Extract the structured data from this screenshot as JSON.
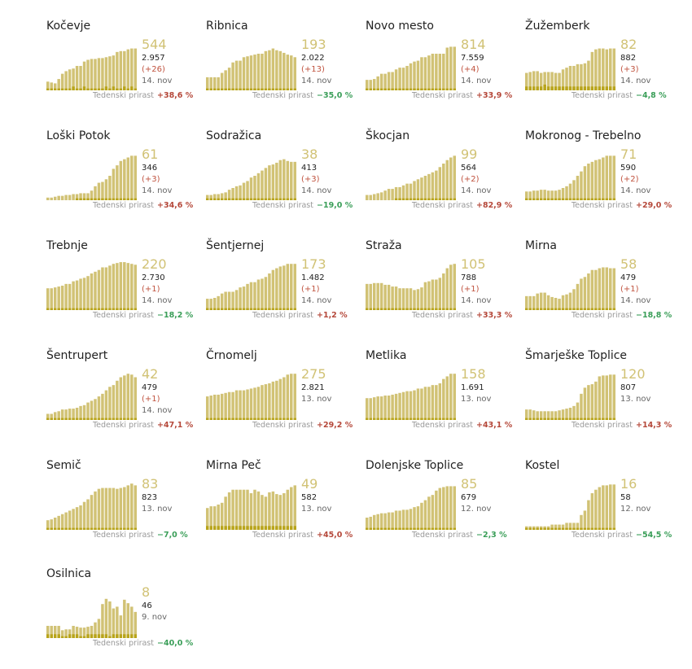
{
  "growth_label": "Tedenski prirast",
  "colors": {
    "active": "#d1c275",
    "new": "#b8a41a",
    "growth_up": "#b5483a",
    "growth_down": "#3a9e58"
  },
  "chart_data": [
    {
      "type": "bar",
      "name": "Kočevje",
      "active": "544",
      "total": "2.957",
      "delta": "(+26)",
      "date": "14. nov",
      "growth": "+38,6 %",
      "values": [
        10,
        9,
        8,
        13,
        19,
        22,
        24,
        25,
        28,
        28,
        33,
        35,
        36,
        36,
        37,
        37,
        38,
        39,
        40,
        44,
        45,
        45,
        47,
        48,
        48
      ],
      "new": [
        1,
        1,
        1,
        1,
        1,
        1,
        1,
        2,
        1,
        1,
        2,
        1,
        1,
        1,
        1,
        1,
        2,
        1,
        2,
        1,
        1,
        2,
        1,
        2,
        1
      ]
    },
    {
      "type": "bar",
      "name": "Ribnica",
      "active": "193",
      "total": "2.022",
      "delta": "(+13)",
      "date": "14. nov",
      "growth": "−35,0 %",
      "values": [
        15,
        15,
        15,
        15,
        20,
        23,
        26,
        32,
        34,
        34,
        38,
        39,
        40,
        41,
        42,
        42,
        45,
        46,
        48,
        46,
        45,
        43,
        41,
        40,
        38
      ],
      "new": [
        1,
        1,
        1,
        1,
        1,
        1,
        1,
        1,
        1,
        1,
        1,
        1,
        1,
        1,
        1,
        1,
        1,
        1,
        1,
        1,
        1,
        1,
        1,
        1,
        1
      ]
    },
    {
      "type": "bar",
      "name": "Novo mesto",
      "active": "814",
      "total": "7.559",
      "delta": "(+4)",
      "date": "14. nov",
      "growth": "+33,9 %",
      "values": [
        12,
        12,
        13,
        16,
        19,
        19,
        21,
        21,
        24,
        26,
        26,
        28,
        31,
        33,
        34,
        38,
        38,
        40,
        42,
        42,
        42,
        42,
        49,
        50,
        50
      ],
      "new": [
        1,
        1,
        1,
        1,
        1,
        1,
        1,
        1,
        1,
        1,
        1,
        1,
        1,
        1,
        1,
        1,
        1,
        1,
        1,
        1,
        1,
        1,
        1,
        1,
        1
      ]
    },
    {
      "type": "bar",
      "name": "Žužemberk",
      "active": "82",
      "total": "882",
      "delta": "(+3)",
      "date": "14. nov",
      "growth": "−4,8 %",
      "values": [
        20,
        21,
        22,
        22,
        20,
        21,
        21,
        21,
        20,
        20,
        24,
        26,
        28,
        28,
        30,
        30,
        31,
        34,
        44,
        47,
        48,
        48,
        47,
        48,
        48
      ],
      "new": [
        2,
        2,
        2,
        2,
        2,
        3,
        2,
        2,
        2,
        2,
        2,
        2,
        2,
        2,
        2,
        2,
        2,
        2,
        2,
        2,
        2,
        2,
        2,
        2,
        2
      ]
    },
    {
      "type": "bar",
      "name": "Loški Potok",
      "active": "61",
      "total": "346",
      "delta": "(+3)",
      "date": "14. nov",
      "growth": "+34,6 %",
      "values": [
        3,
        3,
        4,
        5,
        5,
        6,
        6,
        7,
        7,
        8,
        8,
        8,
        11,
        16,
        20,
        21,
        24,
        28,
        36,
        40,
        45,
        47,
        49,
        51,
        51
      ],
      "new": [
        0,
        0,
        0,
        0,
        0,
        0,
        0,
        0,
        1,
        1,
        1,
        1,
        1,
        1,
        1,
        1,
        1,
        1,
        1,
        1,
        1,
        1,
        1,
        1,
        1
      ]
    },
    {
      "type": "bar",
      "name": "Sodražica",
      "active": "38",
      "total": "413",
      "delta": "(+3)",
      "date": "14. nov",
      "growth": "−19,0 %",
      "values": [
        6,
        6,
        7,
        7,
        8,
        9,
        12,
        14,
        16,
        17,
        20,
        22,
        26,
        28,
        31,
        34,
        37,
        40,
        41,
        43,
        46,
        47,
        45,
        44,
        44
      ],
      "new": [
        1,
        1,
        1,
        1,
        1,
        1,
        1,
        1,
        1,
        1,
        1,
        1,
        1,
        1,
        1,
        1,
        1,
        1,
        1,
        1,
        1,
        1,
        1,
        1,
        1
      ]
    },
    {
      "type": "bar",
      "name": "Škocjan",
      "active": "99",
      "total": "564",
      "delta": "(+2)",
      "date": "14. nov",
      "growth": "+82,9 %",
      "values": [
        6,
        6,
        7,
        8,
        9,
        11,
        13,
        13,
        15,
        15,
        17,
        19,
        19,
        22,
        24,
        26,
        28,
        30,
        32,
        34,
        38,
        42,
        46,
        49,
        51
      ],
      "new": [
        0,
        0,
        0,
        0,
        0,
        0,
        0,
        0,
        1,
        1,
        1,
        1,
        1,
        1,
        1,
        1,
        1,
        1,
        1,
        1,
        1,
        1,
        1,
        1,
        1
      ]
    },
    {
      "type": "bar",
      "name": "Mokronog - Trebelno",
      "active": "71",
      "total": "590",
      "delta": "(+2)",
      "date": "14. nov",
      "growth": "+29,0 %",
      "values": [
        10,
        10,
        11,
        11,
        12,
        12,
        11,
        11,
        11,
        12,
        14,
        16,
        19,
        23,
        28,
        33,
        39,
        42,
        44,
        46,
        47,
        49,
        51,
        51,
        51
      ],
      "new": [
        1,
        1,
        1,
        1,
        1,
        1,
        1,
        1,
        1,
        1,
        1,
        1,
        1,
        1,
        1,
        1,
        1,
        1,
        1,
        1,
        1,
        1,
        1,
        1,
        1
      ]
    },
    {
      "type": "bar",
      "name": "Trebnje",
      "active": "220",
      "total": "2.730",
      "delta": "(+1)",
      "date": "14. nov",
      "growth": "−18,2 %",
      "values": [
        25,
        25,
        26,
        27,
        28,
        30,
        30,
        33,
        34,
        36,
        37,
        39,
        42,
        44,
        46,
        49,
        49,
        51,
        53,
        54,
        55,
        55,
        54,
        53,
        52
      ],
      "new": [
        1,
        1,
        1,
        1,
        1,
        1,
        1,
        1,
        1,
        1,
        1,
        1,
        1,
        1,
        1,
        1,
        1,
        1,
        1,
        1,
        1,
        1,
        1,
        1,
        1
      ]
    },
    {
      "type": "bar",
      "name": "Šentjernej",
      "active": "173",
      "total": "1.482",
      "delta": "(+1)",
      "date": "14. nov",
      "growth": "+1,2 %",
      "values": [
        13,
        13,
        14,
        16,
        19,
        21,
        21,
        21,
        23,
        26,
        27,
        30,
        32,
        32,
        35,
        36,
        38,
        42,
        46,
        48,
        50,
        51,
        53,
        53,
        53
      ],
      "new": [
        1,
        1,
        1,
        1,
        1,
        1,
        1,
        1,
        1,
        1,
        1,
        1,
        1,
        1,
        1,
        1,
        1,
        1,
        1,
        1,
        1,
        1,
        1,
        1,
        1
      ]
    },
    {
      "type": "bar",
      "name": "Straža",
      "active": "105",
      "total": "788",
      "delta": "(+1)",
      "date": "14. nov",
      "growth": "+33,3 %",
      "values": [
        30,
        30,
        31,
        31,
        31,
        29,
        29,
        27,
        27,
        25,
        25,
        25,
        25,
        23,
        24,
        26,
        32,
        33,
        35,
        35,
        37,
        42,
        48,
        52,
        53
      ],
      "new": [
        1,
        1,
        1,
        1,
        1,
        1,
        1,
        1,
        1,
        1,
        1,
        1,
        1,
        1,
        1,
        1,
        1,
        1,
        1,
        1,
        1,
        1,
        1,
        1,
        1
      ]
    },
    {
      "type": "bar",
      "name": "Mirna",
      "active": "58",
      "total": "479",
      "delta": "(+1)",
      "date": "14. nov",
      "growth": "−18,8 %",
      "values": [
        16,
        16,
        16,
        19,
        20,
        20,
        17,
        15,
        14,
        13,
        17,
        18,
        20,
        24,
        30,
        36,
        38,
        42,
        46,
        46,
        48,
        49,
        49,
        48,
        48
      ],
      "new": [
        1,
        1,
        1,
        1,
        1,
        1,
        1,
        1,
        1,
        1,
        1,
        1,
        1,
        1,
        1,
        1,
        1,
        1,
        1,
        1,
        1,
        1,
        1,
        1,
        1
      ]
    },
    {
      "type": "bar",
      "name": "Šentrupert",
      "active": "42",
      "total": "479",
      "delta": "(+1)",
      "date": "14. nov",
      "growth": "+47,1 %",
      "values": [
        7,
        7,
        9,
        10,
        12,
        12,
        13,
        13,
        14,
        16,
        17,
        20,
        22,
        24,
        27,
        30,
        34,
        38,
        40,
        45,
        49,
        51,
        53,
        52,
        49
      ],
      "new": [
        1,
        1,
        1,
        1,
        1,
        1,
        1,
        1,
        1,
        1,
        1,
        1,
        1,
        1,
        1,
        1,
        1,
        1,
        1,
        1,
        1,
        1,
        1,
        1,
        1
      ]
    },
    {
      "type": "bar",
      "name": "Črnomelj",
      "active": "275",
      "total": "2.821",
      "delta": "",
      "date": "13. nov",
      "growth": "+29,2 %",
      "values": [
        27,
        28,
        29,
        29,
        30,
        31,
        32,
        32,
        34,
        34,
        34,
        35,
        36,
        37,
        38,
        40,
        41,
        42,
        44,
        45,
        47,
        49,
        52,
        53,
        53
      ],
      "new": [
        1,
        1,
        1,
        1,
        1,
        1,
        1,
        1,
        1,
        1,
        1,
        1,
        1,
        1,
        1,
        1,
        1,
        1,
        1,
        1,
        1,
        1,
        1,
        1,
        1
      ]
    },
    {
      "type": "bar",
      "name": "Metlika",
      "active": "158",
      "total": "1.691",
      "delta": "",
      "date": "13. nov",
      "growth": "+43,1 %",
      "values": [
        25,
        25,
        26,
        27,
        27,
        28,
        28,
        29,
        30,
        31,
        32,
        33,
        33,
        34,
        36,
        36,
        38,
        38,
        40,
        40,
        42,
        47,
        50,
        53,
        53
      ],
      "new": [
        1,
        1,
        1,
        1,
        1,
        1,
        1,
        1,
        1,
        1,
        1,
        1,
        1,
        1,
        1,
        1,
        1,
        1,
        1,
        1,
        1,
        1,
        1,
        1,
        1
      ]
    },
    {
      "type": "bar",
      "name": "Šmarješke Toplice",
      "active": "120",
      "total": "807",
      "delta": "",
      "date": "13. nov",
      "growth": "+14,3 %",
      "values": [
        12,
        12,
        11,
        10,
        10,
        10,
        10,
        10,
        10,
        11,
        12,
        13,
        14,
        16,
        20,
        30,
        37,
        40,
        41,
        44,
        50,
        51,
        51,
        52,
        52
      ],
      "new": [
        1,
        1,
        1,
        1,
        1,
        1,
        1,
        1,
        1,
        1,
        1,
        1,
        1,
        1,
        1,
        1,
        1,
        1,
        1,
        1,
        1,
        1,
        1,
        1,
        1
      ]
    },
    {
      "type": "bar",
      "name": "Semič",
      "active": "83",
      "total": "823",
      "delta": "",
      "date": "13. nov",
      "growth": "−7,0 %",
      "values": [
        11,
        12,
        14,
        16,
        18,
        20,
        22,
        24,
        26,
        28,
        32,
        35,
        40,
        44,
        47,
        48,
        48,
        48,
        48,
        47,
        48,
        49,
        51,
        53,
        51
      ],
      "new": [
        1,
        1,
        1,
        1,
        1,
        1,
        1,
        1,
        1,
        1,
        1,
        1,
        1,
        1,
        1,
        1,
        1,
        1,
        1,
        1,
        1,
        1,
        1,
        1,
        1
      ]
    },
    {
      "type": "bar",
      "name": "Mirna Peč",
      "active": "49",
      "total": "582",
      "delta": "",
      "date": "13. nov",
      "growth": "+45,0 %",
      "values": [
        25,
        27,
        27,
        29,
        31,
        38,
        43,
        46,
        46,
        46,
        46,
        46,
        42,
        46,
        44,
        40,
        38,
        43,
        44,
        41,
        40,
        42,
        46,
        49,
        51
      ],
      "new": [
        2,
        2,
        2,
        2,
        2,
        2,
        2,
        2,
        2,
        2,
        2,
        2,
        2,
        2,
        2,
        2,
        2,
        2,
        2,
        2,
        2,
        2,
        2,
        2,
        2
      ]
    },
    {
      "type": "bar",
      "name": "Dolenjske Toplice",
      "active": "85",
      "total": "679",
      "delta": "",
      "date": "12. nov",
      "growth": "−2,3 %",
      "values": [
        14,
        15,
        17,
        18,
        19,
        19,
        20,
        20,
        22,
        22,
        23,
        23,
        24,
        26,
        27,
        31,
        34,
        38,
        40,
        45,
        48,
        49,
        50,
        50,
        50
      ],
      "new": [
        1,
        1,
        1,
        1,
        1,
        1,
        1,
        1,
        1,
        1,
        1,
        1,
        1,
        1,
        1,
        1,
        1,
        1,
        1,
        1,
        1,
        1,
        1,
        1,
        1
      ]
    },
    {
      "type": "bar",
      "name": "Kostel",
      "active": "16",
      "total": "58",
      "delta": "",
      "date": "12. nov",
      "growth": "−54,5 %",
      "values": [
        4,
        4,
        4,
        4,
        4,
        4,
        4,
        6,
        6,
        6,
        6,
        8,
        8,
        8,
        8,
        17,
        22,
        34,
        42,
        46,
        49,
        51,
        51,
        52,
        52
      ],
      "new": [
        1,
        1,
        1,
        1,
        1,
        1,
        1,
        1,
        1,
        1,
        1,
        1,
        1,
        1,
        1,
        1,
        1,
        1,
        1,
        1,
        1,
        1,
        1,
        1,
        1
      ]
    },
    {
      "type": "bar",
      "name": "Osilnica",
      "active": "8",
      "total": "46",
      "delta": "",
      "date": "9. nov",
      "growth": "−40,0 %",
      "values": [
        14,
        14,
        14,
        14,
        9,
        10,
        10,
        14,
        13,
        12,
        12,
        13,
        14,
        18,
        22,
        39,
        45,
        42,
        34,
        36,
        26,
        44,
        40,
        36,
        30
      ],
      "new": [
        2,
        2,
        2,
        2,
        1,
        1,
        2,
        2,
        2,
        1,
        1,
        2,
        2,
        2,
        2,
        2,
        2,
        1,
        2,
        2,
        2,
        2,
        2,
        2,
        2
      ]
    }
  ]
}
